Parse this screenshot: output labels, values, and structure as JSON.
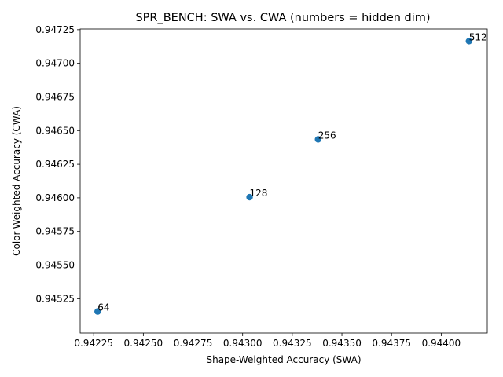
{
  "chart_data": {
    "type": "scatter",
    "title": "SPR_BENCH: SWA vs. CWA (numbers = hidden dim)",
    "xlabel": "Shape-Weighted Accuracy (SWA)",
    "ylabel": "Color-Weighted Accuracy (CWA)",
    "xlim": [
      0.942182,
      0.944232
    ],
    "ylim": [
      0.944995,
      0.947255
    ],
    "grid": false,
    "x_ticks": [
      0.94225,
      0.9425,
      0.94275,
      0.943,
      0.94325,
      0.9435,
      0.94375,
      0.944
    ],
    "x_tick_labels": [
      "0.94225",
      "0.94250",
      "0.94275",
      "0.94300",
      "0.94325",
      "0.94350",
      "0.94375",
      "0.94400"
    ],
    "y_ticks": [
      0.94525,
      0.9455,
      0.94575,
      0.946,
      0.94625,
      0.9465,
      0.94675,
      0.947,
      0.94725
    ],
    "y_tick_labels": [
      "0.94525",
      "0.94550",
      "0.94575",
      "0.94600",
      "0.94625",
      "0.94650",
      "0.94675",
      "0.94700",
      "0.94725"
    ],
    "color": "#1f77b4",
    "points": [
      {
        "x": 0.94227,
        "y": 0.945155,
        "label": "64"
      },
      {
        "x": 0.943035,
        "y": 0.946005,
        "label": "128"
      },
      {
        "x": 0.94338,
        "y": 0.946435,
        "label": "256"
      },
      {
        "x": 0.94414,
        "y": 0.947165,
        "label": "512"
      }
    ]
  }
}
